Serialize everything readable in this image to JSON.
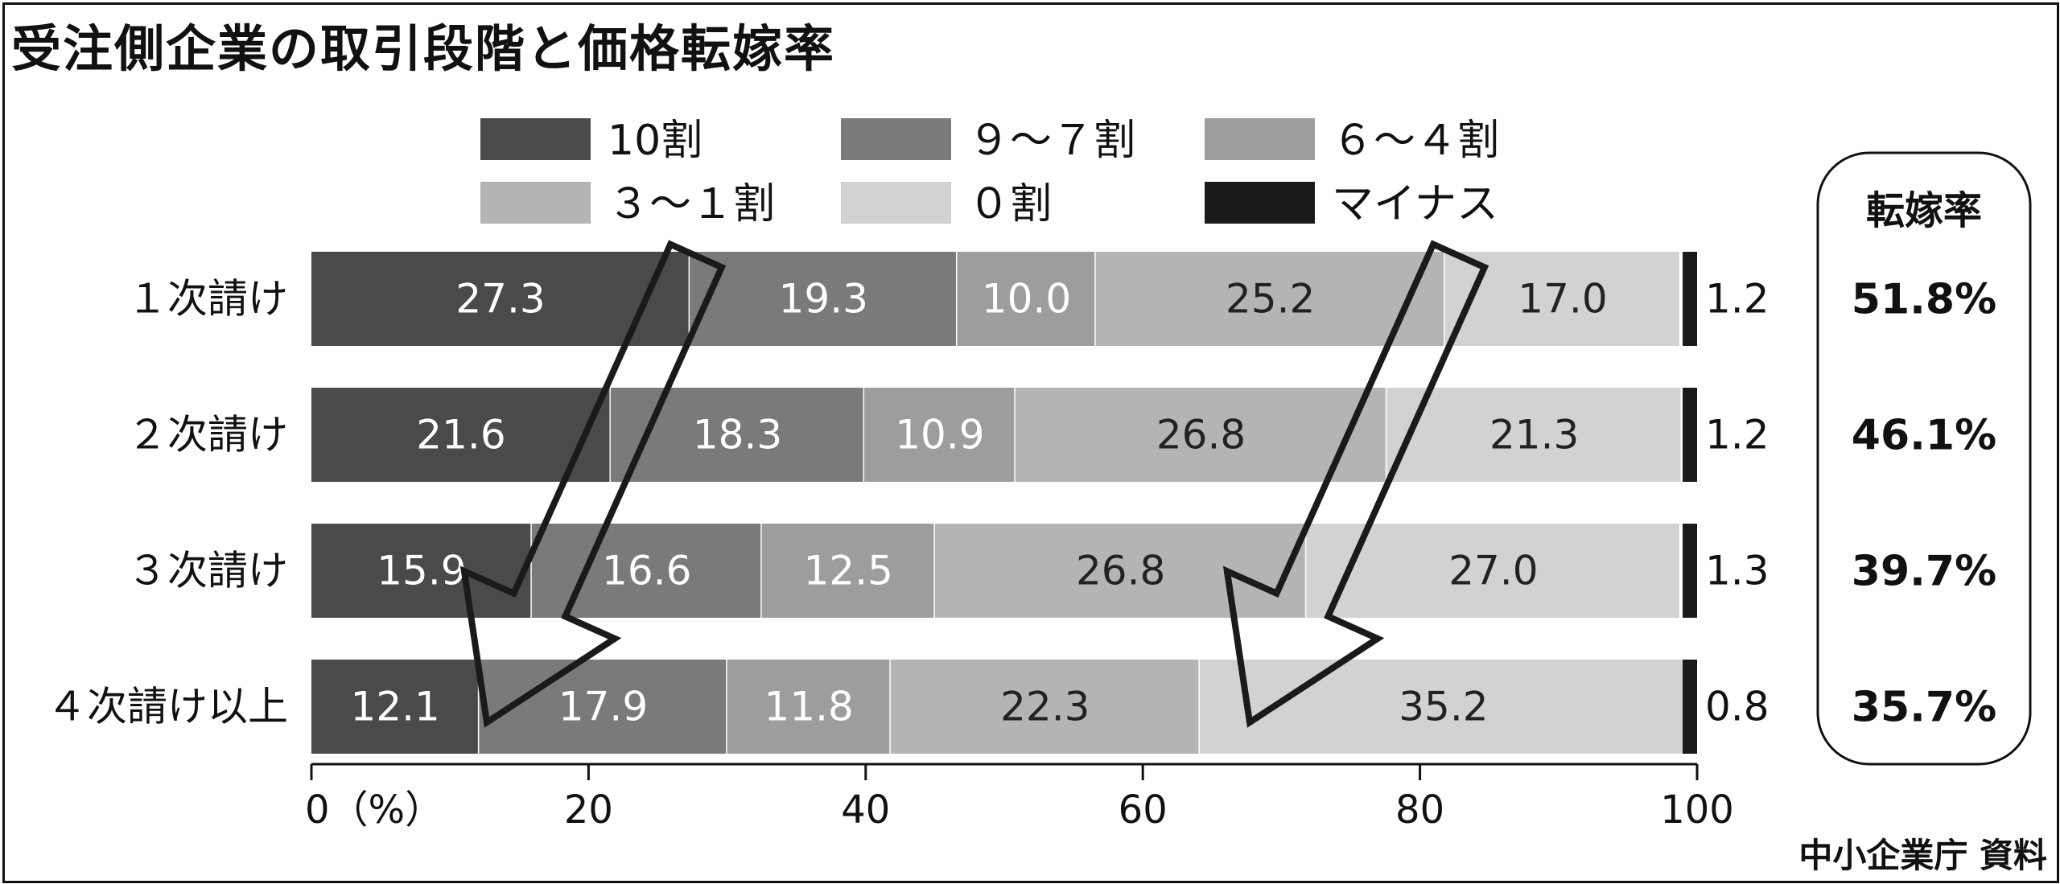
{
  "title": "受注側企業の取引段階と価格転嫁率",
  "source": "中小企業庁 資料",
  "chart_data": {
    "type": "bar",
    "orientation": "horizontal",
    "stacked": true,
    "categories": [
      "１次請け",
      "２次請け",
      "３次請け",
      "４次請け以上"
    ],
    "series": [
      {
        "name": "10割",
        "color": "#4a4a4a",
        "label_color": "#ffffff",
        "values": [
          27.3,
          21.6,
          15.9,
          12.1
        ]
      },
      {
        "name": "９～７割",
        "color": "#7a7a7a",
        "label_color": "#ffffff",
        "values": [
          19.3,
          18.3,
          16.6,
          17.9
        ]
      },
      {
        "name": "６～４割",
        "color": "#9d9d9d",
        "label_color": "#ffffff",
        "values": [
          10.0,
          10.9,
          12.5,
          11.8
        ]
      },
      {
        "name": "３～１割",
        "color": "#b4b4b4",
        "label_color": "#222222",
        "values": [
          25.2,
          26.8,
          26.8,
          22.3
        ]
      },
      {
        "name": "０割",
        "color": "#d2d2d2",
        "label_color": "#222222",
        "values": [
          17.0,
          21.3,
          27.0,
          35.2
        ]
      },
      {
        "name": "マイナス",
        "color": "#1a1a1a",
        "label_color": "#111111",
        "values": [
          1.2,
          1.2,
          1.3,
          0.8
        ]
      }
    ],
    "xlim": [
      0,
      100
    ],
    "x_ticks": [
      0,
      20,
      40,
      60,
      80,
      100
    ],
    "x_tick_labels": [
      "0（%）",
      "20",
      "40",
      "60",
      "80",
      "100"
    ],
    "legend_position": "top",
    "pass_through_rate": {
      "header": "転嫁率",
      "values": [
        "51.8%",
        "46.1%",
        "39.7%",
        "35.7%"
      ]
    }
  }
}
